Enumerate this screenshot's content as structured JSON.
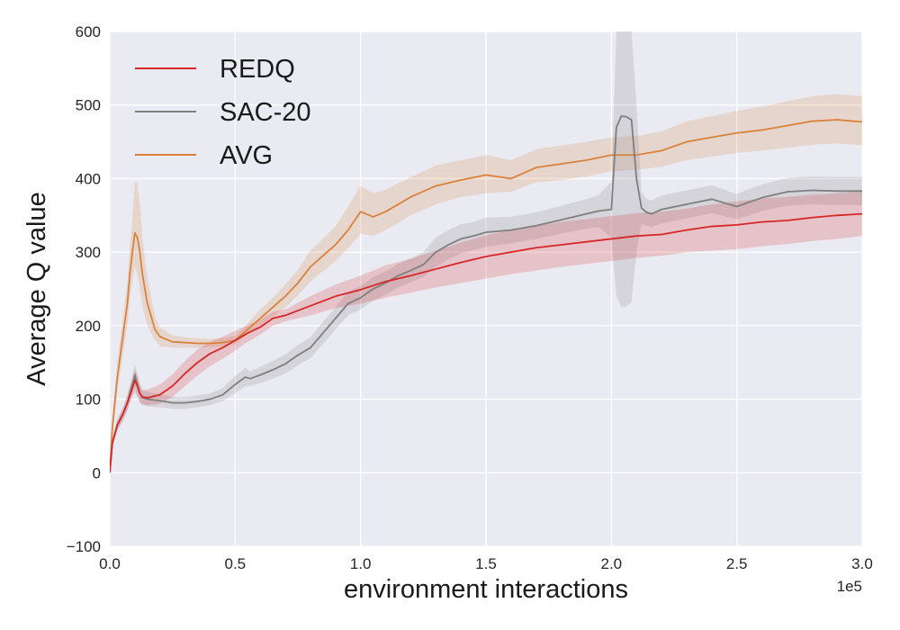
{
  "chart_data": {
    "type": "line",
    "title": "",
    "xlabel": "environment interactions",
    "ylabel": "Average Q value",
    "x_offset_label": "1e5",
    "xlim": [
      0,
      3.0
    ],
    "ylim": [
      -100,
      600
    ],
    "x_ticks": [
      0.0,
      0.5,
      1.0,
      1.5,
      2.0,
      2.5,
      3.0
    ],
    "x_tick_labels": [
      "0.0",
      "0.5",
      "1.0",
      "1.5",
      "2.0",
      "2.5",
      "3.0"
    ],
    "y_ticks": [
      -100,
      0,
      100,
      200,
      300,
      400,
      500,
      600
    ],
    "y_tick_labels": [
      "−100",
      "0",
      "100",
      "200",
      "300",
      "400",
      "500",
      "600"
    ],
    "grid": true,
    "legend_position": "top-left",
    "background": "#eaeaf2",
    "series": [
      {
        "name": "REDQ",
        "color": "#d62728",
        "x": [
          0,
          0.01,
          0.03,
          0.05,
          0.07,
          0.08,
          0.09,
          0.1,
          0.11,
          0.12,
          0.13,
          0.15,
          0.2,
          0.25,
          0.3,
          0.35,
          0.4,
          0.45,
          0.5,
          0.55,
          0.6,
          0.65,
          0.7,
          0.8,
          0.9,
          1.0,
          1.1,
          1.2,
          1.3,
          1.4,
          1.5,
          1.6,
          1.7,
          1.8,
          1.9,
          2.0,
          2.1,
          2.2,
          2.3,
          2.4,
          2.5,
          2.6,
          2.7,
          2.8,
          2.9,
          3.0
        ],
        "y": [
          0,
          40,
          65,
          78,
          95,
          105,
          115,
          126,
          118,
          108,
          103,
          102,
          106,
          118,
          135,
          150,
          162,
          170,
          180,
          190,
          198,
          210,
          214,
          227,
          240,
          249,
          260,
          268,
          277,
          286,
          294,
          300,
          306,
          310,
          314,
          318,
          322,
          324,
          330,
          335,
          337,
          341,
          343,
          347,
          350,
          352
        ],
        "lower": [
          0,
          35,
          58,
          70,
          85,
          95,
          103,
          110,
          103,
          96,
          93,
          92,
          94,
          103,
          118,
          132,
          145,
          155,
          166,
          178,
          188,
          200,
          206,
          214,
          224,
          230,
          238,
          245,
          252,
          258,
          264,
          270,
          275,
          280,
          284,
          288,
          292,
          295,
          300,
          302,
          304,
          308,
          311,
          315,
          318,
          322
        ],
        "upper": [
          0,
          45,
          72,
          86,
          105,
          116,
          127,
          140,
          132,
          120,
          113,
          113,
          120,
          134,
          152,
          168,
          178,
          185,
          193,
          201,
          208,
          219,
          222,
          240,
          256,
          268,
          282,
          291,
          302,
          313,
          323,
          330,
          336,
          341,
          345,
          349,
          353,
          355,
          359,
          365,
          369,
          373,
          375,
          378,
          380,
          382
        ]
      },
      {
        "name": "SAC-20",
        "color": "#7f7f7f",
        "x": [
          0,
          0.01,
          0.03,
          0.05,
          0.07,
          0.08,
          0.09,
          0.1,
          0.11,
          0.12,
          0.13,
          0.15,
          0.2,
          0.25,
          0.3,
          0.35,
          0.4,
          0.45,
          0.5,
          0.52,
          0.54,
          0.56,
          0.6,
          0.65,
          0.7,
          0.75,
          0.8,
          0.85,
          0.9,
          0.95,
          1.0,
          1.05,
          1.1,
          1.15,
          1.2,
          1.25,
          1.3,
          1.35,
          1.4,
          1.45,
          1.5,
          1.6,
          1.7,
          1.8,
          1.9,
          1.95,
          2.0,
          2.02,
          2.04,
          2.06,
          2.08,
          2.1,
          2.12,
          2.14,
          2.16,
          2.2,
          2.3,
          2.4,
          2.5,
          2.55,
          2.6,
          2.7,
          2.8,
          2.9,
          3.0
        ],
        "y": [
          0,
          40,
          65,
          78,
          95,
          108,
          120,
          133,
          120,
          108,
          102,
          100,
          98,
          95,
          95,
          97,
          100,
          106,
          120,
          125,
          130,
          128,
          133,
          140,
          148,
          160,
          170,
          190,
          210,
          230,
          238,
          250,
          258,
          268,
          275,
          283,
          300,
          310,
          318,
          322,
          327,
          330,
          336,
          344,
          352,
          356,
          358,
          470,
          485,
          484,
          480,
          400,
          360,
          354,
          352,
          358,
          365,
          372,
          362,
          368,
          374,
          382,
          384,
          383,
          383
        ],
        "lower": [
          0,
          35,
          58,
          70,
          85,
          97,
          107,
          118,
          106,
          96,
          92,
          90,
          89,
          87,
          87,
          89,
          92,
          97,
          108,
          113,
          117,
          118,
          122,
          128,
          135,
          146,
          156,
          175,
          195,
          214,
          222,
          234,
          242,
          252,
          259,
          266,
          280,
          290,
          298,
          303,
          307,
          312,
          318,
          325,
          332,
          334,
          320,
          240,
          225,
          226,
          232,
          300,
          338,
          336,
          334,
          339,
          346,
          353,
          345,
          350,
          356,
          363,
          365,
          364,
          364
        ],
        "upper": [
          0,
          45,
          72,
          86,
          105,
          119,
          133,
          148,
          134,
          120,
          112,
          110,
          107,
          103,
          103,
          105,
          108,
          115,
          132,
          137,
          143,
          138,
          144,
          152,
          161,
          174,
          184,
          205,
          225,
          246,
          254,
          266,
          274,
          284,
          291,
          300,
          320,
          330,
          338,
          341,
          347,
          348,
          354,
          363,
          372,
          378,
          396,
          610,
          640,
          640,
          620,
          500,
          382,
          372,
          370,
          377,
          384,
          391,
          379,
          386,
          392,
          401,
          403,
          402,
          402
        ]
      },
      {
        "name": "AVG",
        "color": "#d9823b",
        "x": [
          0,
          0.01,
          0.03,
          0.05,
          0.07,
          0.08,
          0.09,
          0.1,
          0.11,
          0.12,
          0.13,
          0.15,
          0.18,
          0.2,
          0.25,
          0.3,
          0.35,
          0.4,
          0.45,
          0.5,
          0.55,
          0.6,
          0.65,
          0.7,
          0.75,
          0.8,
          0.85,
          0.9,
          0.95,
          1.0,
          1.05,
          1.1,
          1.2,
          1.3,
          1.4,
          1.5,
          1.6,
          1.7,
          1.8,
          1.9,
          2.0,
          2.1,
          2.2,
          2.3,
          2.4,
          2.5,
          2.6,
          2.7,
          2.8,
          2.9,
          3.0
        ],
        "y": [
          0,
          60,
          130,
          180,
          230,
          270,
          300,
          326,
          320,
          300,
          270,
          230,
          195,
          185,
          178,
          177,
          176,
          176,
          177,
          180,
          195,
          210,
          225,
          240,
          258,
          280,
          295,
          310,
          330,
          355,
          348,
          355,
          375,
          390,
          398,
          405,
          400,
          415,
          420,
          425,
          432,
          432,
          438,
          450,
          456,
          462,
          466,
          472,
          478,
          480,
          477
        ],
        "lower": [
          0,
          50,
          110,
          155,
          200,
          235,
          260,
          280,
          270,
          250,
          225,
          200,
          180,
          172,
          170,
          170,
          170,
          171,
          172,
          175,
          188,
          200,
          213,
          225,
          241,
          260,
          274,
          288,
          305,
          325,
          322,
          330,
          350,
          365,
          375,
          380,
          382,
          395,
          398,
          403,
          410,
          412,
          416,
          425,
          430,
          435,
          438,
          442,
          446,
          448,
          445
        ],
        "upper": [
          0,
          70,
          150,
          205,
          260,
          305,
          345,
          395,
          395,
          365,
          320,
          265,
          212,
          198,
          187,
          184,
          183,
          182,
          183,
          186,
          203,
          222,
          238,
          256,
          276,
          302,
          318,
          335,
          362,
          390,
          380,
          385,
          402,
          418,
          425,
          432,
          425,
          440,
          445,
          450,
          456,
          458,
          464,
          478,
          485,
          492,
          498,
          505,
          512,
          515,
          512
        ]
      }
    ]
  }
}
